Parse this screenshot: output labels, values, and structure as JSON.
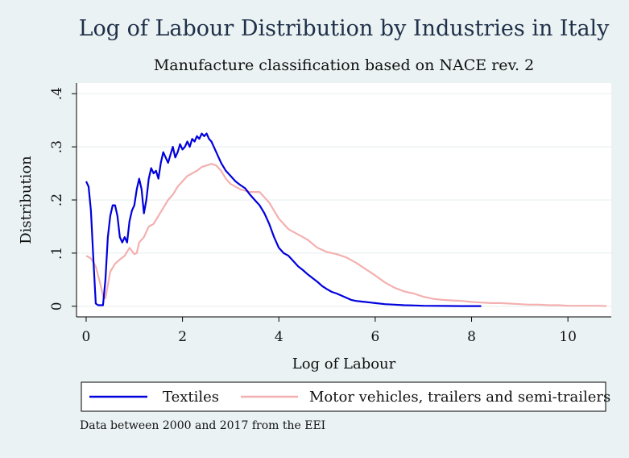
{
  "chart_data": {
    "type": "line",
    "title": "Log of Labour Distribution by Industries in Italy",
    "subtitle": "Manufacture classification based on NACE rev. 2",
    "xlabel": "Log of Labour",
    "ylabel": "Distribution",
    "xlim": [
      -0.2,
      10.9
    ],
    "ylim": [
      -0.02,
      0.42
    ],
    "x_ticks": [
      0,
      2,
      4,
      6,
      8,
      10
    ],
    "x_tick_labels": [
      "0",
      "2",
      "4",
      "6",
      "8",
      "10"
    ],
    "y_ticks": [
      0,
      0.1,
      0.2,
      0.3,
      0.4
    ],
    "y_tick_labels": [
      "0",
      ".1",
      ".2",
      ".3",
      ".4"
    ],
    "grid": "horizontal",
    "legend_position": "bottom",
    "note": "Data between 2000 and 2017 from the EEI",
    "series": [
      {
        "name": "Textiles",
        "color": "#0000dd",
        "x": [
          0.0,
          0.05,
          0.1,
          0.15,
          0.2,
          0.25,
          0.3,
          0.35,
          0.4,
          0.45,
          0.5,
          0.55,
          0.6,
          0.65,
          0.7,
          0.75,
          0.8,
          0.85,
          0.9,
          0.95,
          1.0,
          1.05,
          1.1,
          1.15,
          1.2,
          1.25,
          1.3,
          1.35,
          1.4,
          1.45,
          1.5,
          1.55,
          1.6,
          1.65,
          1.7,
          1.75,
          1.8,
          1.85,
          1.9,
          1.95,
          2.0,
          2.05,
          2.1,
          2.15,
          2.2,
          2.25,
          2.3,
          2.35,
          2.4,
          2.45,
          2.5,
          2.55,
          2.6,
          2.65,
          2.7,
          2.75,
          2.8,
          2.9,
          3.0,
          3.1,
          3.2,
          3.3,
          3.4,
          3.5,
          3.6,
          3.7,
          3.8,
          3.9,
          4.0,
          4.1,
          4.2,
          4.3,
          4.4,
          4.5,
          4.6,
          4.7,
          4.8,
          4.9,
          5.0,
          5.1,
          5.2,
          5.3,
          5.4,
          5.5,
          5.6,
          5.7,
          5.8,
          5.9,
          6.0,
          6.2,
          6.4,
          6.6,
          6.8,
          7.0,
          7.2,
          7.4,
          7.6,
          7.8,
          8.0,
          8.2
        ],
        "values": [
          0.235,
          0.225,
          0.18,
          0.09,
          0.005,
          0.002,
          0.002,
          0.002,
          0.05,
          0.13,
          0.17,
          0.19,
          0.19,
          0.17,
          0.13,
          0.12,
          0.13,
          0.12,
          0.16,
          0.18,
          0.19,
          0.22,
          0.24,
          0.22,
          0.175,
          0.2,
          0.24,
          0.26,
          0.25,
          0.255,
          0.24,
          0.27,
          0.29,
          0.28,
          0.27,
          0.285,
          0.3,
          0.28,
          0.29,
          0.305,
          0.295,
          0.3,
          0.31,
          0.3,
          0.315,
          0.31,
          0.32,
          0.315,
          0.325,
          0.32,
          0.325,
          0.315,
          0.31,
          0.3,
          0.29,
          0.28,
          0.27,
          0.255,
          0.245,
          0.235,
          0.228,
          0.222,
          0.21,
          0.2,
          0.19,
          0.175,
          0.155,
          0.13,
          0.11,
          0.1,
          0.095,
          0.085,
          0.075,
          0.068,
          0.06,
          0.053,
          0.046,
          0.038,
          0.032,
          0.027,
          0.024,
          0.02,
          0.016,
          0.012,
          0.01,
          0.009,
          0.008,
          0.007,
          0.006,
          0.004,
          0.003,
          0.002,
          0.0015,
          0.001,
          0.0008,
          0.0006,
          0.0005,
          0.0004,
          0.0003,
          0.0003
        ]
      },
      {
        "name": "Motor vehicles, trailers and semi-trailers",
        "color": "#f4b0b0",
        "x": [
          0.0,
          0.1,
          0.2,
          0.3,
          0.35,
          0.4,
          0.5,
          0.6,
          0.7,
          0.8,
          0.9,
          1.0,
          1.05,
          1.1,
          1.2,
          1.3,
          1.4,
          1.5,
          1.6,
          1.7,
          1.8,
          1.9,
          2.0,
          2.1,
          2.2,
          2.3,
          2.4,
          2.5,
          2.6,
          2.7,
          2.8,
          2.9,
          3.0,
          3.2,
          3.4,
          3.6,
          3.8,
          4.0,
          4.2,
          4.4,
          4.6,
          4.8,
          5.0,
          5.2,
          5.4,
          5.6,
          5.8,
          6.0,
          6.2,
          6.4,
          6.6,
          6.8,
          7.0,
          7.2,
          7.4,
          7.6,
          7.8,
          8.0,
          8.2,
          8.4,
          8.6,
          8.8,
          9.0,
          9.2,
          9.4,
          9.6,
          9.8,
          10.0,
          10.2,
          10.4,
          10.6,
          10.8
        ],
        "values": [
          0.095,
          0.09,
          0.075,
          0.04,
          0.02,
          0.015,
          0.065,
          0.08,
          0.088,
          0.095,
          0.11,
          0.098,
          0.1,
          0.12,
          0.13,
          0.15,
          0.155,
          0.17,
          0.185,
          0.2,
          0.21,
          0.225,
          0.235,
          0.245,
          0.25,
          0.255,
          0.262,
          0.265,
          0.268,
          0.265,
          0.255,
          0.24,
          0.23,
          0.22,
          0.215,
          0.215,
          0.195,
          0.165,
          0.145,
          0.135,
          0.125,
          0.11,
          0.102,
          0.098,
          0.092,
          0.082,
          0.07,
          0.058,
          0.045,
          0.035,
          0.028,
          0.024,
          0.018,
          0.014,
          0.012,
          0.011,
          0.01,
          0.008,
          0.007,
          0.006,
          0.006,
          0.005,
          0.004,
          0.003,
          0.003,
          0.002,
          0.002,
          0.001,
          0.001,
          0.001,
          0.001,
          0.0005
        ]
      }
    ]
  }
}
